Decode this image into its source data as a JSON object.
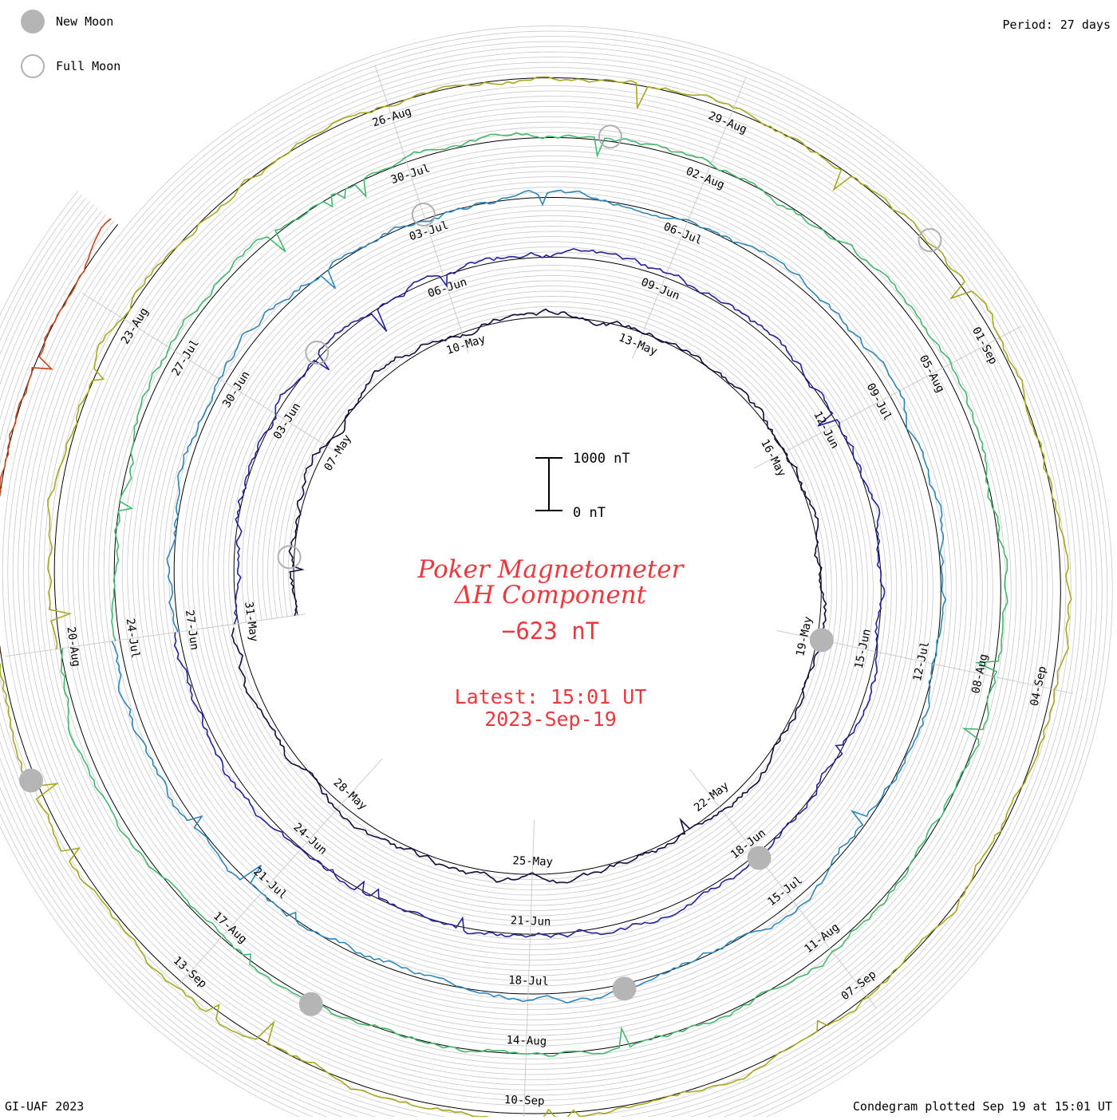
{
  "header": {
    "period_label": "Period: 27 days",
    "footer_left": "GI-UAF 2023",
    "footer_right": "Condegram plotted Sep 19 at 15:01 UT"
  },
  "legend": {
    "new_moon": "New Moon",
    "full_moon": "Full Moon"
  },
  "title": {
    "line1": "Poker Magnetometer",
    "line2": "ΔH Component",
    "current_value": "−623 nT",
    "latest_label": "Latest: 15:01 UT",
    "latest_date": "2023-Sep-19"
  },
  "scale_bar": {
    "top_label": "1000 nT",
    "bottom_label": "0 nT"
  },
  "colors": {
    "title": "#e8393f",
    "new_moon": "#b5b5b5",
    "full_moon_outline": "#b0b0b0",
    "grid": "#c8c8c8",
    "baseline": "#000000"
  },
  "chart_data": {
    "type": "line",
    "layout": "spiral condegram",
    "period_days": 27,
    "start_date": "2023-05-04",
    "end_date": "2023-09-19",
    "y_unit": "nT",
    "rotations": [
      {
        "color": "#140a3c",
        "date_labels": [
          "07-May",
          "10-May",
          "13-May",
          "16-May",
          "19-May"
        ]
      },
      {
        "color": "#24229a",
        "date_labels": [
          "22-May",
          "25-May",
          "28-May",
          "31-May",
          "03-Jun",
          "06-Jun",
          "09-Jun",
          "12-Jun",
          "15-Jun"
        ]
      },
      {
        "color": "#2f86b8",
        "date_labels": [
          "18-Jun",
          "21-Jun",
          "24-Jun",
          "27-Jun",
          "30-Jun",
          "03-Jul",
          "06-Jul",
          "09-Jul",
          "12-Jul"
        ]
      },
      {
        "color": "#43b86c",
        "date_labels": [
          "15-Jul",
          "18-Jul",
          "21-Jul",
          "24-Jul",
          "27-Jul",
          "30-Jul",
          "02-Aug",
          "05-Aug",
          "08-Aug"
        ]
      },
      {
        "color": "#a8a820",
        "date_labels": [
          "11-Aug",
          "14-Aug",
          "17-Aug",
          "20-Aug",
          "23-Aug",
          "26-Aug",
          "29-Aug",
          "01-Sep",
          "04-Sep"
        ]
      },
      {
        "color": "#c2461a",
        "date_labels": [
          "07-Sep",
          "10-Sep",
          "13-Sep"
        ]
      }
    ],
    "new_moons": [
      "2023-05-19",
      "2023-06-18",
      "2023-07-17",
      "2023-08-16",
      "2023-09-15"
    ],
    "full_moons": [
      "2023-05-05",
      "2023-06-04",
      "2023-07-03",
      "2023-08-01",
      "2023-08-31"
    ]
  }
}
